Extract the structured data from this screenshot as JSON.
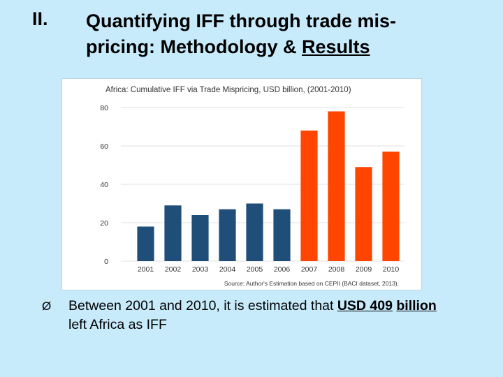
{
  "slide": {
    "number": "II.",
    "title_line1": "Quantifying IFF through trade mis-",
    "title_line2_prefix": "pricing: Methodology & ",
    "title_line2_underlined": "Results"
  },
  "bullet": {
    "marker": "Ø",
    "text_before": "Between 2001 and 2010, it is estimated that ",
    "underlined_1": "USD 409",
    "text_between": " ",
    "underlined_2": "billion",
    "text_after": " left Africa as IFF"
  },
  "colors": {
    "background": "#c8ebfb",
    "bar_blue": "#1f4e79",
    "bar_orange": "#ff4500"
  },
  "chart_data": {
    "type": "bar",
    "title": "Africa: Cumulative IFF via Trade Mispricing, USD billion, (2001-2010)",
    "source": "Source: Author's Estimation based on CEPII (BACI dataset, 2013).",
    "categories": [
      "2001",
      "2002",
      "2003",
      "2004",
      "2005",
      "2006",
      "2007",
      "2008",
      "2009",
      "2010"
    ],
    "values": [
      18,
      29,
      24,
      27,
      30,
      27,
      68,
      78,
      49,
      57
    ],
    "bar_colors": [
      "#1f4e79",
      "#1f4e79",
      "#1f4e79",
      "#1f4e79",
      "#1f4e79",
      "#1f4e79",
      "#ff4500",
      "#ff4500",
      "#ff4500",
      "#ff4500"
    ],
    "y_ticks": [
      0,
      20,
      40,
      60,
      80
    ],
    "ylim": [
      0,
      84
    ],
    "xlabel": "",
    "ylabel": "",
    "grid": true
  }
}
